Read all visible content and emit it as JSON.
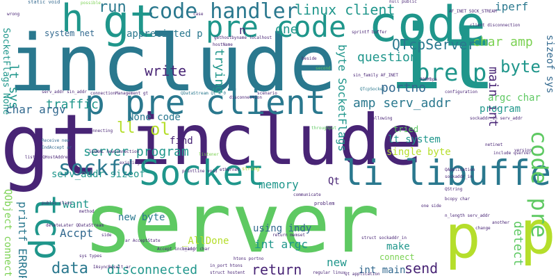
{
  "palette": {
    "dark_purple": "#482475",
    "teal": "#1f968b",
    "teal_dark": "#2a788e",
    "green": "#5ec962",
    "light_green": "#7ad151",
    "yellow_green": "#b5de2b",
    "blue": "#31688e",
    "indigo": "#3e4989"
  },
  "words": {
    "include_big": "include",
    "it": "it",
    "gt_big": "gt",
    "include_mid": "include",
    "server_big": "server",
    "p_right": "p",
    "p_mid": "p",
    "h": "h",
    "gt_top": "gt",
    "code_top": "code",
    "code_handler": "code handler",
    "pre_code": "pre code",
    "pre_p": "pre p",
    "p_pre_client": "p pre client",
    "socket": "Socket",
    "li_libuffer": "li libuffer",
    "tcp": "tcp",
    "code_pre": "code pre",
    "sockfd": "sockfd",
    "byte": "byte",
    "char_amp": "char amp",
    "qtcpserver": "QTcpServer",
    "question": "question",
    "linux_client": "linux client",
    "iperf": "iperf",
    "main_int": "main int",
    "sizeof_sys": "sizeof sys",
    "lt_sys": "lt sys",
    "run": "run",
    "system_net": "system net",
    "appreciated_p": "appreciated p",
    "socketflags_none": "SocketFlags None",
    "n": "n",
    "one": "one",
    "trying": "trying",
    "byte_socketflags": "byte SocketFlags",
    "portno": "portno",
    "write": "write",
    "none_code": "None code",
    "traffic": "traffic",
    "char_argv": "char argv",
    "ol": "ol",
    "find": "find",
    "server_program": "server program",
    "amp_serv_addr": "amp serv_addr",
    "lt_system": "lt system",
    "single_byte": "single byte",
    "argc_char": "argc char",
    "program": "program",
    "tried": "tried",
    "serv_addr_sizeof": "serv_addr sizeof",
    "memory": "memory",
    "qt": "Qt",
    "want": "want",
    "detect": "detect",
    "new_byte": "new byte",
    "allDone": "_AllDone",
    "accpt": "Accpt",
    "int_argc": "int argc",
    "using_indy": "using indy",
    "make": "make",
    "connect": "connect",
    "new": "new",
    "printf_error": "printf ERROR",
    "qobject_connect": "QObject connect",
    "data": "data",
    "disconnected": "disconnected",
    "return": "return",
    "int_main": "int main",
    "send": "send",
    "ll": "ll"
  },
  "small_words": [
    "static void",
    "gethostbyname localhost",
    "serv_addr sin_addr",
    "QDataStream Qt_4_0",
    "connectionManagement gt",
    "hostName",
    "possible",
    "null public",
    "AF_INET SOCK_STREAM",
    "client disconnection",
    "sprintf buffer",
    "sin_family AF_INET",
    "900Mbps",
    "QTcpSocket",
    "beside",
    "second",
    "configuration",
    "disconnection",
    "scenario",
    "connecting",
    "Receive new",
    "EndAccept ar",
    "listen QHostAddress",
    "SIGNAL newConnection",
    "existing linux",
    "printline void",
    "ethernet",
    "string",
    "communicate",
    "problem",
    "one side",
    "sockaddr_in serv_addr",
    "include qserver",
    "netinet",
    "listener",
    "throughput",
    "following",
    "QApplication",
    "QString",
    "sockaddr_in",
    "bcopy char",
    "deleteLater QDataStream",
    "ar AcceptState",
    "method",
    "side",
    "sys types",
    "Accept incoming",
    "h_addr char",
    "in_port htons",
    "struct hostent",
    "htons portno",
    "regular linux",
    "Qt application",
    "struct sockaddr_in",
    "return memset",
    "n_length serv_addr",
    "another",
    "change",
    "IAsyncResult ar",
    "public class",
    "wrong",
    "case",
    "version"
  ]
}
